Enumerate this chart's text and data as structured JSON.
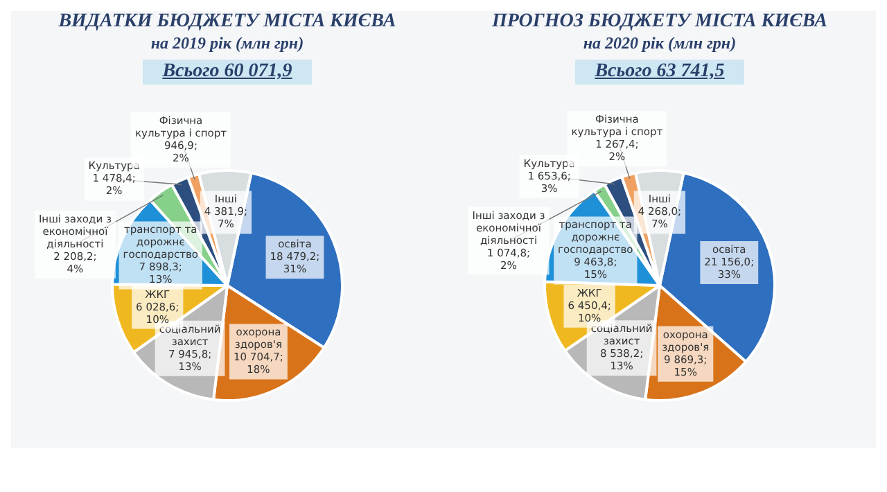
{
  "chart_data": [
    {
      "type": "pie",
      "title": "ВИДАТКИ БЮДЖЕТУ МІСТА КИЄВА",
      "subtitle": "на 2019 рік (млн грн)",
      "annotations": [
        "Всього 60 071,9"
      ],
      "categories": [
        "освіта",
        "охорона здоров'я",
        "соціальний захист",
        "ЖКГ",
        "транспорт та дорожнє господарство",
        "Інші заходи з економічної діяльності",
        "Культура",
        "Фізична культура і спорт",
        "Інші"
      ],
      "values": [
        18479.2,
        10704.7,
        7945.8,
        6028.6,
        7898.3,
        2208.2,
        1478.4,
        946.9,
        4381.9
      ],
      "value_labels": [
        "18 479,2; 31%",
        "10 704,7; 18%",
        "7 945,8; 13%",
        "6 028,6; 10%",
        "7 898,3; 13%",
        "2 208,2; 4%",
        "1 478,4; 2%",
        "946,9; 2%",
        "4 381,9; 7%"
      ],
      "colors": [
        "#2e6fc0",
        "#d9731a",
        "#b8b8b8",
        "#f0b820",
        "#1e90d8",
        "#86d08a",
        "#2c4f80",
        "#f0a060",
        "#d8dde0"
      ]
    },
    {
      "type": "pie",
      "title": "ПРОГНОЗ БЮДЖЕТУ МІСТА КИЄВА",
      "subtitle": "на 2020 рік (млн грн)",
      "annotations": [
        "Всього 63 741,5"
      ],
      "categories": [
        "освіта",
        "охорона здоров'я",
        "соціальний захист",
        "ЖКГ",
        "транспорт та дорожнє господарство",
        "Інші заходи з економічної діяльності",
        "Культура",
        "Фізична культура і спорт",
        "Інші"
      ],
      "values": [
        21156.0,
        9869.3,
        8538.2,
        6450.4,
        9463.8,
        1074.8,
        1653.6,
        1267.4,
        4268.0
      ],
      "value_labels": [
        "21 156,0; 33%",
        "9 869,3; 15%",
        "8 538,2; 13%",
        "6 450,4; 10%",
        "9 463,8; 15%",
        "1 074,8; 2%",
        "1 653,6; 3%",
        "1 267,4; 2%",
        "4 268,0; 7%"
      ],
      "colors": [
        "#2e6fc0",
        "#d9731a",
        "#b8b8b8",
        "#f0b820",
        "#1e90d8",
        "#86d08a",
        "#2c4f80",
        "#f0a060",
        "#d8dde0"
      ]
    }
  ]
}
